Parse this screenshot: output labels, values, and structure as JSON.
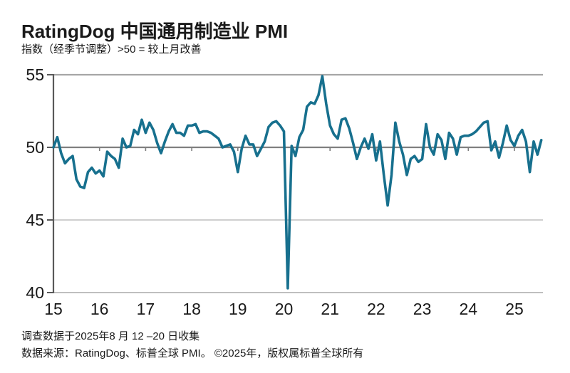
{
  "header": {
    "title": "RatingDog 中国通用制造业 PMI",
    "subtitle": "指数（经季节调整）>50 = 较上月改善"
  },
  "footer": {
    "line1": "调查数据于2025年8 月 12 –20 日收集",
    "line2": "数据来源：RatingDog、标普全球 PMI。 ©2025年，版权属标普全球所有"
  },
  "chart_data": {
    "type": "line",
    "title": "RatingDog 中国通用制造业 PMI",
    "subtitle": "指数（经季节调整）>50 = 较上月改善",
    "frequency": "monthly",
    "x_start": "2015-01",
    "x_end": "2025-08",
    "xtick_labels": [
      "15",
      "16",
      "17",
      "18",
      "19",
      "20",
      "21",
      "22",
      "23",
      "24",
      "25"
    ],
    "yticks": [
      40,
      45,
      50,
      55
    ],
    "ylim": [
      40,
      55
    ],
    "reference_line": 50,
    "grid": "horizontal",
    "legend_position": "none",
    "line_color": "#17708E",
    "axis_color": "#595959",
    "ref_line_color": "#7F7F7F",
    "grid_color": "#BFBFBF",
    "top_line_color": "#A6A6A6",
    "tick_label_color": "#1A1A1A",
    "values": [
      50.0,
      50.7,
      49.6,
      48.9,
      49.2,
      49.4,
      47.8,
      47.3,
      47.2,
      48.3,
      48.6,
      48.2,
      48.4,
      48.0,
      49.7,
      49.4,
      49.2,
      48.6,
      50.6,
      50.0,
      50.1,
      51.2,
      50.9,
      51.9,
      51.0,
      51.7,
      51.2,
      50.3,
      49.6,
      50.4,
      51.1,
      51.6,
      51.0,
      51.0,
      50.8,
      51.5,
      51.5,
      51.6,
      51.0,
      51.1,
      51.1,
      51.0,
      50.8,
      50.6,
      50.0,
      50.1,
      50.2,
      49.7,
      48.3,
      49.9,
      50.8,
      50.2,
      50.2,
      49.4,
      49.9,
      50.4,
      51.4,
      51.7,
      51.8,
      51.5,
      51.1,
      40.3,
      50.1,
      49.4,
      50.7,
      51.2,
      52.8,
      53.1,
      53.0,
      53.6,
      54.9,
      53.0,
      51.5,
      50.9,
      50.6,
      51.9,
      52.0,
      51.3,
      50.3,
      49.2,
      50.0,
      50.6,
      49.9,
      50.9,
      49.1,
      50.4,
      48.1,
      46.0,
      48.1,
      51.7,
      50.4,
      49.5,
      48.1,
      49.2,
      49.4,
      49.0,
      49.2,
      51.6,
      50.0,
      49.5,
      50.9,
      50.5,
      49.2,
      51.0,
      50.6,
      49.5,
      50.7,
      50.8,
      50.8,
      50.9,
      51.1,
      51.4,
      51.7,
      51.8,
      49.8,
      50.4,
      49.3,
      50.3,
      51.5,
      50.5,
      50.1,
      50.8,
      51.2,
      50.4,
      48.3,
      50.4,
      49.5,
      50.5
    ]
  }
}
